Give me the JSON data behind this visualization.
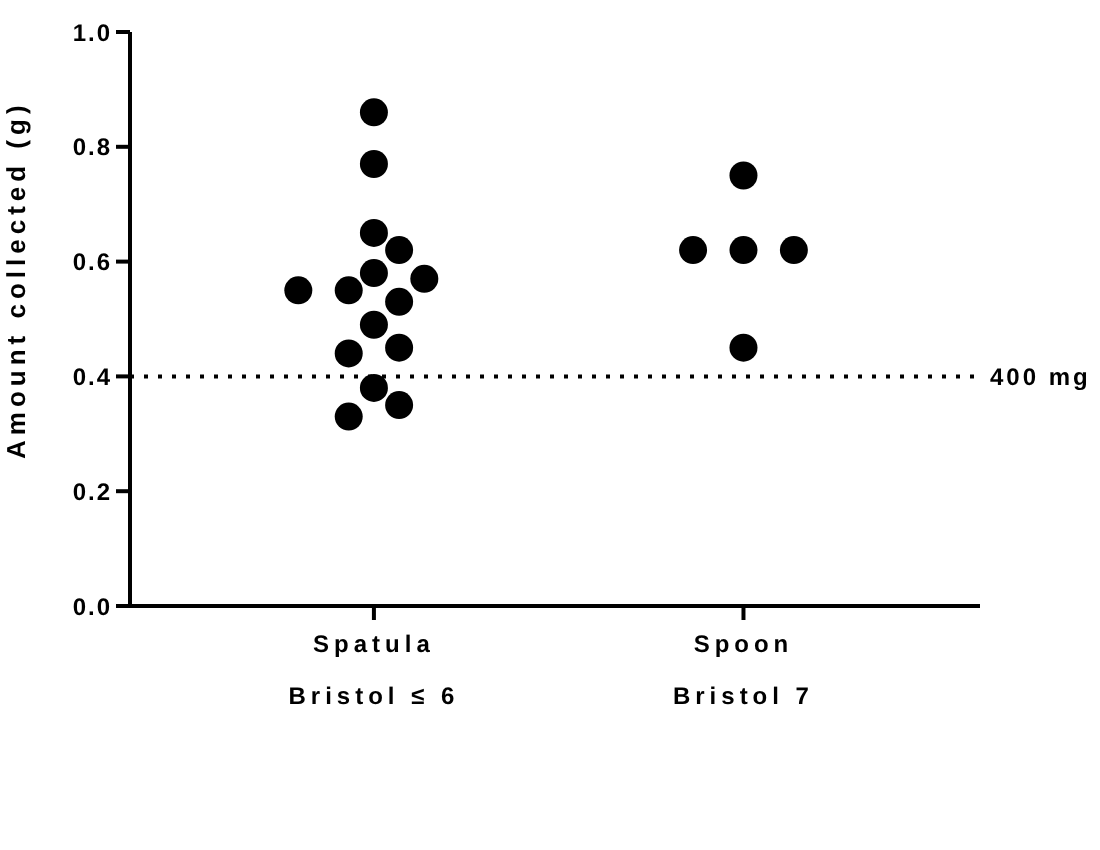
{
  "chart_data": {
    "type": "scatter",
    "ylabel": "Amount collected (g)",
    "categories": [
      "Spatula\nBristol ≤ 6",
      "Spoon\nBristol 7"
    ],
    "series": [
      {
        "color": "#000000",
        "x": [
          "Spatula\nBristol ≤ 6",
          "Spatula\nBristol ≤ 6",
          "Spatula\nBristol ≤ 6",
          "Spatula\nBristol ≤ 6",
          "Spatula\nBristol ≤ 6",
          "Spatula\nBristol ≤ 6",
          "Spatula\nBristol ≤ 6",
          "Spatula\nBristol ≤ 6",
          "Spatula\nBristol ≤ 6",
          "Spatula\nBristol ≤ 6",
          "Spatula\nBristol ≤ 6",
          "Spatula\nBristol ≤ 6",
          "Spatula\nBristol ≤ 6",
          "Spatula\nBristol ≤ 6",
          "Spatula\nBristol ≤ 6"
        ],
        "values": [
          0.86,
          0.77,
          0.65,
          0.62,
          0.58,
          0.57,
          0.55,
          0.55,
          0.53,
          0.49,
          0.45,
          0.44,
          0.38,
          0.35,
          0.33
        ]
      },
      {
        "color": "#000000",
        "x": [
          "Spoon\nBristol 7",
          "Spoon\nBristol 7",
          "Spoon\nBristol 7",
          "Spoon\nBristol 7",
          "Spoon\nBristol 7"
        ],
        "values": [
          0.75,
          0.62,
          0.62,
          0.62,
          0.45
        ]
      }
    ],
    "ylim": [
      0,
      1
    ],
    "yticks": [
      {
        "value": 0,
        "label": "0.0"
      },
      0.2,
      0.4,
      0.6,
      0.8,
      {
        "value": 1,
        "label": "1.0"
      }
    ],
    "ref_lines": [
      {
        "axis": "y",
        "value": 0.4,
        "label": "400 mg",
        "color": "#000000",
        "line_style": "dotted"
      }
    ],
    "marker": "circle",
    "grid": false,
    "legend": false
  }
}
